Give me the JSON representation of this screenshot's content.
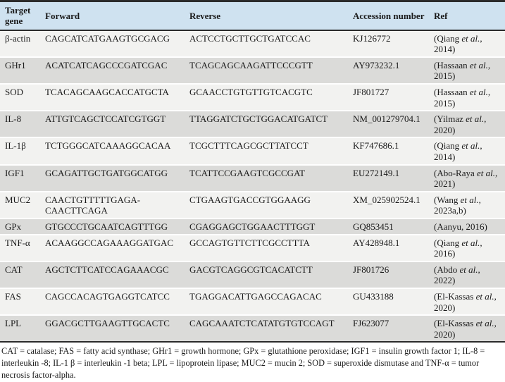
{
  "table": {
    "columns": [
      "Target gene",
      "Forward",
      "Reverse",
      "Accession number",
      "Ref"
    ],
    "rows": [
      {
        "gene": "β-actin",
        "forward": "CAGCATCATGAAGTGCGACG",
        "reverse": "ACTCCTGCTTGCTGATCCAC",
        "accession": "KJ126772",
        "ref_authors": "(Qiang ",
        "ref_etal": "et al.,",
        "ref_year": " 2014)"
      },
      {
        "gene": "GHr1",
        "forward": "ACATCATCAGCCCGATCGAC",
        "reverse": "TCAGCAGCAAGATTCCCGTT",
        "accession": "AY973232.1",
        "ref_authors": "(Hassaan ",
        "ref_etal": "et al.,",
        "ref_year": " 2015)"
      },
      {
        "gene": "SOD",
        "forward": "TCACAGCAAGCACCATGCTA",
        "reverse": "GCAACCTGTGTTGTCACGTC",
        "accession": "JF801727",
        "ref_authors": "(Hassaan ",
        "ref_etal": "et al.,",
        "ref_year": " 2015)"
      },
      {
        "gene": "IL-8",
        "forward": "ATTGTCAGCTCCATCGTGGT",
        "reverse": "TTAGGATCTGCTGGACATGATCT",
        "accession": "NM_001279704.1",
        "ref_authors": "(Yilmaz ",
        "ref_etal": "et al.,",
        "ref_year": " 2020)"
      },
      {
        "gene": "IL-1β",
        "forward": "TCTGGGCATCAAAGGCACAA",
        "reverse": "TCGCTTTCAGCGCTTATCCT",
        "accession": "KF747686.1",
        "ref_authors": "(Qiang ",
        "ref_etal": "et al.,",
        "ref_year": " 2014)"
      },
      {
        "gene": "IGF1",
        "forward": "GCAGATTGCTGATGGCATGG",
        "reverse": "TCATTCCGAAGTCGCCGAT",
        "accession": "EU272149.1",
        "ref_authors": "(Abo-Raya ",
        "ref_etal": "et al.,",
        "ref_year": " 2021)"
      },
      {
        "gene": "MUC2",
        "forward": "CAACTGTTTTTGAGA-\nCAACTTCAGA",
        "reverse": "CTGAAGTGACCGTGGAAGG",
        "accession": "XM_025902524.1",
        "ref_authors": "(Wang ",
        "ref_etal": "et al.,",
        "ref_year": " 2023a,b)"
      },
      {
        "gene": "GPx",
        "forward": "GTGCCCTGCAATCAGTTTGG",
        "reverse": "CGAGGAGCTGGAACTTTGGT",
        "accession": "GQ853451",
        "ref_authors": "(Aanyu, 2016)",
        "ref_etal": "",
        "ref_year": ""
      },
      {
        "gene": "TNF-α",
        "forward": "ACAAGGCCAGAAAGGATGAC",
        "reverse": "GCCAGTGTTCTTCGCCTTTA",
        "accession": "AY428948.1",
        "ref_authors": "(Qiang ",
        "ref_etal": "et al.,",
        "ref_year": " 2016)"
      },
      {
        "gene": "CAT",
        "forward": "AGCTCTTCATCCAGAAACGC",
        "reverse": "GACGTCAGGCGTCACATCTT",
        "accession": "JF801726",
        "ref_authors": "(Abdo ",
        "ref_etal": "et al.,",
        "ref_year": " 2022)"
      },
      {
        "gene": "FAS",
        "forward": "CAGCCACAGTGAGGTCATCC",
        "reverse": "TGAGGACATTGAGCCAGACAC",
        "accession": "GU433188",
        "ref_authors": "(El-Kassas ",
        "ref_etal": "et al.,",
        "ref_year": " 2020)"
      },
      {
        "gene": "LPL",
        "forward": "GGACGCTTGAAGTTGCACTC",
        "reverse": "CAGCAAATCTCATATGTGTCCAGT",
        "accession": "FJ623077",
        "ref_authors": "(El-Kassas ",
        "ref_etal": "et al.,",
        "ref_year": " 2020)"
      }
    ]
  },
  "footnote": "CAT = catalase; FAS = fatty acid synthase; GHr1 = growth hormone; GPx = glutathione peroxidase; IGF1 = insulin growth factor 1; IL-8 = interleukin -8; IL-1 β = interleukin -1 beta; LPL = lipoprotein lipase; MUC2 = mucin 2; SOD = superoxide dismutase and TNF-α = tumor necrosis factor-alpha.",
  "colors": {
    "header_bg": "#cfe2f0",
    "row_light": "#f2f2f0",
    "row_dark": "#dbdbd9",
    "rule": "#2b2b2b"
  }
}
